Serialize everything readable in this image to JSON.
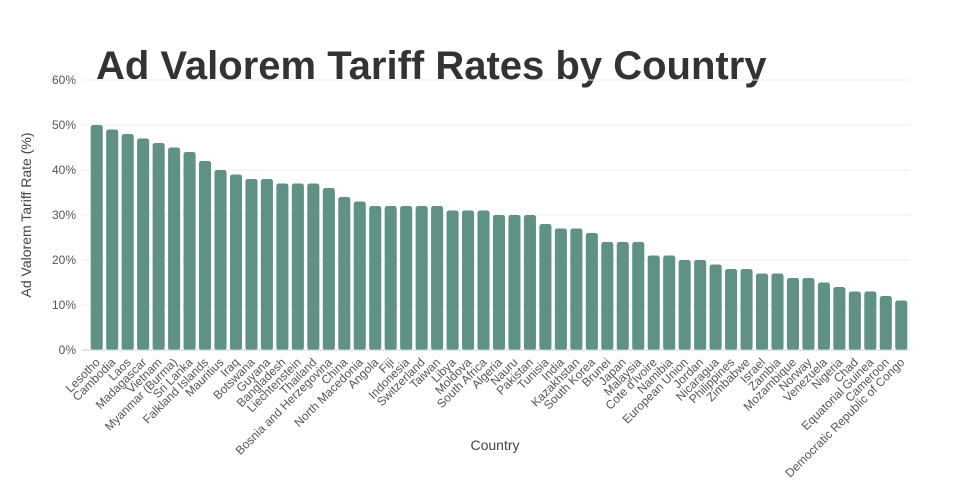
{
  "chart_data": {
    "type": "bar",
    "title": "Ad Valorem Tariff Rates by Country",
    "xlabel": "Country",
    "ylabel": "Ad Valorem Tariff Rate (%)",
    "ylim": [
      0,
      60
    ],
    "yticks": [
      "0%",
      "10%",
      "20%",
      "30%",
      "40%",
      "50%",
      "60%"
    ],
    "grid": true,
    "bar_color": "#5f9184",
    "categories": [
      "Lesotho",
      "Cambodia",
      "Laos",
      "Madagascar",
      "Vietnam",
      "Myanmar (Burma)",
      "Sri Lanka",
      "Falkland Islands",
      "Mauritius",
      "Iraq",
      "Botswana",
      "Guyana",
      "Bangladesh",
      "Liechtenstein",
      "Thailand",
      "Bosnia and Herzegovina",
      "China",
      "North Macedonia",
      "Angola",
      "Fiji",
      "Indonesia",
      "Switzerland",
      "Taiwan",
      "Libya",
      "Moldova",
      "South Africa",
      "Algeria",
      "Nauru",
      "Pakistan",
      "Tunisia",
      "India",
      "Kazakhstan",
      "South Korea",
      "Brunei",
      "Japan",
      "Malaysia",
      "Cote d'Ivoire",
      "Namibia",
      "European Union",
      "Jordan",
      "Nicaragua",
      "Philippines",
      "Zimbabwe",
      "Israel",
      "Zambia",
      "Mozambique",
      "Norway",
      "Venezuela",
      "Nigeria",
      "Chad",
      "Equatorial Guinea",
      "Cameroon",
      "Democratic Republic of Congo"
    ],
    "values": [
      50,
      49,
      48,
      47,
      46,
      45,
      44,
      42,
      40,
      39,
      38,
      38,
      37,
      37,
      37,
      36,
      34,
      33,
      32,
      32,
      32,
      32,
      32,
      31,
      31,
      31,
      30,
      30,
      30,
      28,
      27,
      27,
      26,
      24,
      24,
      24,
      21,
      21,
      20,
      20,
      19,
      18,
      18,
      17,
      17,
      16,
      16,
      15,
      14,
      13,
      13,
      12,
      11
    ]
  }
}
